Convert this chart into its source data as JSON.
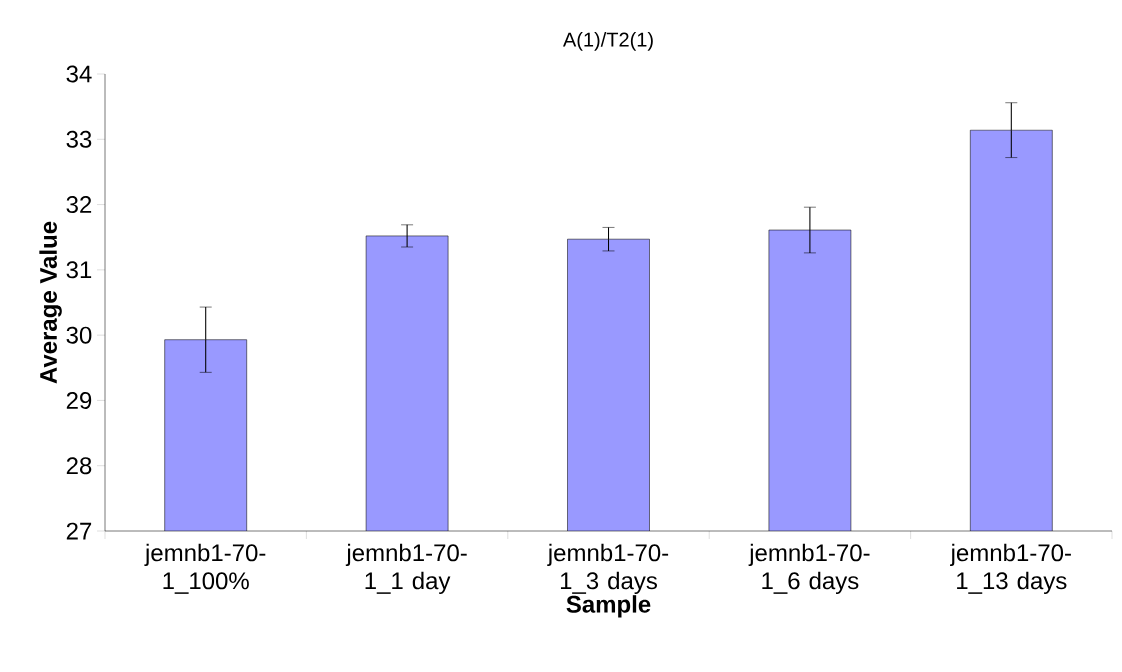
{
  "chart_data": {
    "type": "bar",
    "title": "A(1)/T2(1)",
    "xlabel": "Sample",
    "ylabel": "Average Value",
    "categories": [
      "jemnb1-70-1_100%",
      "jemnb1-70-1_1 day",
      "jemnb1-70-1_3 days",
      "jemnb1-70-1_6 days",
      "jemnb1-70-1_13 days"
    ],
    "values": [
      29.93,
      31.52,
      31.47,
      31.61,
      33.14
    ],
    "errors": [
      0.5,
      0.17,
      0.18,
      0.35,
      0.42
    ],
    "color": "#9999ff",
    "ylim": [
      27,
      34
    ],
    "yticks": [
      27,
      28,
      29,
      30,
      31,
      32,
      33,
      34
    ],
    "grid": false
  }
}
